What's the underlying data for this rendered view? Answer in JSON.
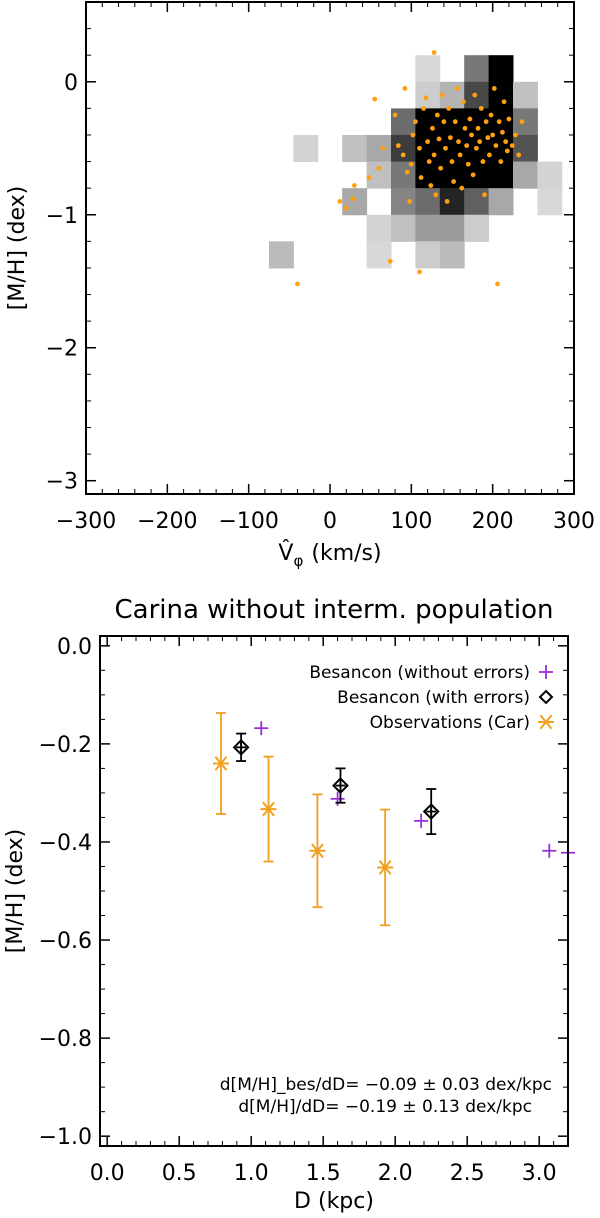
{
  "chart_data": [
    {
      "type": "heatmap",
      "title": "",
      "xlabel": "V̂",
      "xlabel_sub": "φ",
      "xlabel_unit": "(km/s)",
      "ylabel": "[M/H] (dex)",
      "xlim": [
        -300,
        300
      ],
      "ylim": [
        -3.1,
        0.6
      ],
      "xticks": [
        -300,
        -200,
        -100,
        0,
        100,
        200,
        300
      ],
      "xtick_labels": [
        "−300",
        "−200",
        "−100",
        "0",
        "100",
        "200",
        "300"
      ],
      "yticks": [
        0,
        -1,
        -2,
        -3
      ],
      "ytick_labels": [
        "0",
        "−1",
        "−2",
        "−3"
      ],
      "grid": false,
      "cell_size": {
        "dx": 30,
        "dy": 0.2
      },
      "cells": [
        {
          "x": 120,
          "y": 0.1,
          "v": 0.1
        },
        {
          "x": 180,
          "y": 0.1,
          "v": 0.5
        },
        {
          "x": 210,
          "y": 0.1,
          "v": 1.0
        },
        {
          "x": 120,
          "y": -0.1,
          "v": 0.15
        },
        {
          "x": 150,
          "y": -0.1,
          "v": 0.25
        },
        {
          "x": 180,
          "y": -0.1,
          "v": 0.7
        },
        {
          "x": 210,
          "y": -0.1,
          "v": 1.0
        },
        {
          "x": 240,
          "y": -0.1,
          "v": 0.2
        },
        {
          "x": 90,
          "y": -0.3,
          "v": 0.55
        },
        {
          "x": 120,
          "y": -0.3,
          "v": 1.0
        },
        {
          "x": 150,
          "y": -0.3,
          "v": 1.0
        },
        {
          "x": 180,
          "y": -0.3,
          "v": 1.0
        },
        {
          "x": 210,
          "y": -0.3,
          "v": 1.0
        },
        {
          "x": 240,
          "y": -0.3,
          "v": 0.5
        },
        {
          "x": -30,
          "y": -0.5,
          "v": 0.12
        },
        {
          "x": 30,
          "y": -0.5,
          "v": 0.2
        },
        {
          "x": 60,
          "y": -0.5,
          "v": 0.3
        },
        {
          "x": 90,
          "y": -0.5,
          "v": 0.75
        },
        {
          "x": 120,
          "y": -0.5,
          "v": 1.0
        },
        {
          "x": 150,
          "y": -0.5,
          "v": 1.0
        },
        {
          "x": 180,
          "y": -0.5,
          "v": 1.0
        },
        {
          "x": 210,
          "y": -0.5,
          "v": 1.0
        },
        {
          "x": 240,
          "y": -0.5,
          "v": 0.65
        },
        {
          "x": 60,
          "y": -0.7,
          "v": 0.2
        },
        {
          "x": 90,
          "y": -0.7,
          "v": 0.5
        },
        {
          "x": 120,
          "y": -0.7,
          "v": 1.0
        },
        {
          "x": 150,
          "y": -0.7,
          "v": 1.0
        },
        {
          "x": 180,
          "y": -0.7,
          "v": 1.0
        },
        {
          "x": 210,
          "y": -0.7,
          "v": 1.0
        },
        {
          "x": 240,
          "y": -0.7,
          "v": 0.3
        },
        {
          "x": 270,
          "y": -0.7,
          "v": 0.12
        },
        {
          "x": 30,
          "y": -0.9,
          "v": 0.3
        },
        {
          "x": 90,
          "y": -0.9,
          "v": 0.45
        },
        {
          "x": 120,
          "y": -0.9,
          "v": 0.55
        },
        {
          "x": 150,
          "y": -0.9,
          "v": 0.85
        },
        {
          "x": 180,
          "y": -0.9,
          "v": 0.6
        },
        {
          "x": 210,
          "y": -0.9,
          "v": 0.3
        },
        {
          "x": 60,
          "y": -1.1,
          "v": 0.12
        },
        {
          "x": 90,
          "y": -1.1,
          "v": 0.2
        },
        {
          "x": 120,
          "y": -1.1,
          "v": 0.35
        },
        {
          "x": 150,
          "y": -1.1,
          "v": 0.35
        },
        {
          "x": 180,
          "y": -1.1,
          "v": 0.15
        },
        {
          "x": 270,
          "y": -0.9,
          "v": 0.1
        },
        {
          "x": 60,
          "y": -1.3,
          "v": 0.1
        },
        {
          "x": 120,
          "y": -1.3,
          "v": 0.15
        },
        {
          "x": 150,
          "y": -1.3,
          "v": 0.22
        },
        {
          "x": -60,
          "y": -1.3,
          "v": 0.22
        }
      ],
      "points_color": "#ffa010",
      "points": [
        [
          -40,
          -1.52
        ],
        [
          12,
          -0.9
        ],
        [
          20,
          -0.95
        ],
        [
          28,
          -0.88
        ],
        [
          30,
          -0.78
        ],
        [
          48,
          -0.72
        ],
        [
          55,
          -0.13
        ],
        [
          60,
          -0.65
        ],
        [
          65,
          -0.5
        ],
        [
          74,
          -1.35
        ],
        [
          80,
          -0.25
        ],
        [
          84,
          -0.48
        ],
        [
          90,
          -0.55
        ],
        [
          95,
          -0.68
        ],
        [
          98,
          -0.9
        ],
        [
          100,
          -0.62
        ],
        [
          102,
          -0.4
        ],
        [
          105,
          -0.3
        ],
        [
          110,
          -0.5
        ],
        [
          112,
          -0.72
        ],
        [
          115,
          -0.2
        ],
        [
          118,
          -0.12
        ],
        [
          120,
          -0.45
        ],
        [
          122,
          -0.6
        ],
        [
          124,
          -0.78
        ],
        [
          126,
          -0.35
        ],
        [
          128,
          -0.55
        ],
        [
          130,
          -0.85
        ],
        [
          132,
          -0.25
        ],
        [
          134,
          -0.43
        ],
        [
          136,
          -0.65
        ],
        [
          138,
          -0.1
        ],
        [
          140,
          -0.3
        ],
        [
          142,
          -0.5
        ],
        [
          144,
          -0.9
        ],
        [
          146,
          -0.2
        ],
        [
          148,
          -0.42
        ],
        [
          150,
          -0.6
        ],
        [
          152,
          -0.75
        ],
        [
          154,
          -0.3
        ],
        [
          156,
          -0.05
        ],
        [
          158,
          -0.45
        ],
        [
          160,
          -0.55
        ],
        [
          162,
          -0.8
        ],
        [
          164,
          -0.15
        ],
        [
          166,
          -0.35
        ],
        [
          168,
          -0.48
        ],
        [
          170,
          -0.62
        ],
        [
          172,
          -0.28
        ],
        [
          174,
          -0.4
        ],
        [
          176,
          -0.7
        ],
        [
          178,
          -0.1
        ],
        [
          180,
          -0.5
        ],
        [
          182,
          -0.35
        ],
        [
          184,
          -0.45
        ],
        [
          186,
          -0.2
        ],
        [
          188,
          -0.6
        ],
        [
          190,
          -0.85
        ],
        [
          192,
          -0.3
        ],
        [
          194,
          -0.42
        ],
        [
          196,
          -0.55
        ],
        [
          198,
          -0.25
        ],
        [
          200,
          -0.4
        ],
        [
          202,
          -0.05
        ],
        [
          204,
          -0.48
        ],
        [
          206,
          -1.52
        ],
        [
          208,
          -0.3
        ],
        [
          210,
          -0.6
        ],
        [
          212,
          -0.38
        ],
        [
          214,
          -0.15
        ],
        [
          216,
          -0.45
        ],
        [
          218,
          -0.52
        ],
        [
          220,
          -0.28
        ],
        [
          224,
          -0.48
        ],
        [
          228,
          -0.4
        ],
        [
          232,
          -0.55
        ],
        [
          236,
          -0.3
        ],
        [
          110,
          -1.43
        ],
        [
          128,
          0.22
        ],
        [
          92,
          -0.05
        ]
      ]
    },
    {
      "type": "scatter",
      "title": "Carina without interm. population",
      "xlabel": "D (kpc)",
      "ylabel": "[M/H] (dex)",
      "xlim": [
        -0.05,
        3.2
      ],
      "ylim": [
        -1.02,
        0.02
      ],
      "xticks": [
        0.0,
        0.5,
        1.0,
        1.5,
        2.0,
        2.5,
        3.0
      ],
      "xtick_labels": [
        "0.0",
        "0.5",
        "1.0",
        "1.5",
        "2.0",
        "2.5",
        "3.0"
      ],
      "yticks": [
        0.0,
        -0.2,
        -0.4,
        -0.6,
        -0.8,
        -1.0
      ],
      "ytick_labels": [
        "0.0",
        "−0.2",
        "−0.4",
        "−0.6",
        "−0.8",
        "−1.0"
      ],
      "legend_position": "top-right",
      "grid": false,
      "series": [
        {
          "name": "Besancon (without errors)",
          "marker": "plus",
          "color": "#9b30d9",
          "x": [
            1.07,
            1.6,
            2.18,
            3.07,
            3.2
          ],
          "y": [
            -0.168,
            -0.312,
            -0.357,
            -0.418,
            -0.422
          ]
        },
        {
          "name": "Besancon (with errors)",
          "marker": "diamond",
          "color": "#000000",
          "x": [
            0.93,
            1.62,
            2.25
          ],
          "y": [
            -0.207,
            -0.285,
            -0.338
          ],
          "yerr": [
            0.028,
            0.035,
            0.046
          ]
        },
        {
          "name": "Observations (Car)",
          "marker": "asterisk",
          "color": "#f0a01e",
          "x": [
            0.79,
            1.12,
            1.46,
            1.93
          ],
          "y": [
            -0.24,
            -0.333,
            -0.418,
            -0.452
          ],
          "yerr": [
            0.103,
            0.107,
            0.115,
            0.118
          ]
        }
      ],
      "annotations": [
        "d[M/H]_bes/dD= −0.09 ± 0.03 dex/kpc",
        "d[M/H]/dD= −0.19 ± 0.13 dex/kpc"
      ]
    }
  ]
}
